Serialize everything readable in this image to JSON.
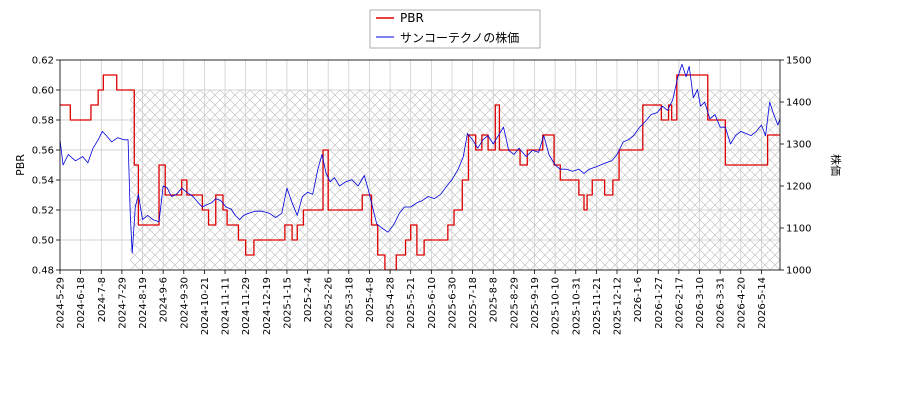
{
  "chart_data": {
    "type": "line",
    "ylabel_left": "PBR",
    "ylabel_right": "株価",
    "ylim_left": [
      0.48,
      0.62
    ],
    "ylim_right": [
      1000,
      1500
    ],
    "yticks_left": [
      "0.48",
      "0.50",
      "0.52",
      "0.54",
      "0.56",
      "0.58",
      "0.60",
      "0.62"
    ],
    "yticks_right": [
      "1000",
      "1100",
      "1200",
      "1300",
      "1400",
      "1500"
    ],
    "grid": true,
    "legend_position": "top-center",
    "x_tick_labels": [
      "2024-5-29",
      "2024-6-18",
      "2024-7-8",
      "2024-7-29",
      "2024-8-19",
      "2024-9-6",
      "2024-9-30",
      "2024-10-21",
      "2024-11-11",
      "2024-11-29",
      "2024-12-19",
      "2025-1-15",
      "2025-2-4",
      "2025-2-26",
      "2025-3-18",
      "2025-4-8",
      "2025-4-28",
      "2025-5-21",
      "2025-6-10",
      "2025-6-30",
      "2025-7-18",
      "2025-8-8",
      "2025-8-29",
      "2025-9-19",
      "2025-10-10",
      "2025-10-31",
      "2025-11-21",
      "2025-12-12",
      "2026-1-6",
      "2026-1-27",
      "2026-2-17",
      "2026-3-10",
      "2026-3-31",
      "2026-4-20",
      "2026-5-14"
    ],
    "series": [
      {
        "name": "PBR",
        "color": "#dd0000",
        "axis": "left",
        "points": [
          [
            0,
            0.59
          ],
          [
            1,
            0.59
          ],
          [
            1,
            0.58
          ],
          [
            3,
            0.58
          ],
          [
            3,
            0.59
          ],
          [
            3.7,
            0.59
          ],
          [
            3.7,
            0.6
          ],
          [
            4.2,
            0.6
          ],
          [
            4.2,
            0.61
          ],
          [
            5.5,
            0.61
          ],
          [
            5.5,
            0.6
          ],
          [
            7.2,
            0.6
          ],
          [
            7.2,
            0.55
          ],
          [
            7.6,
            0.55
          ],
          [
            7.6,
            0.51
          ],
          [
            9.6,
            0.51
          ],
          [
            9.6,
            0.55
          ],
          [
            10.2,
            0.55
          ],
          [
            10.2,
            0.53
          ],
          [
            11.8,
            0.53
          ],
          [
            11.8,
            0.54
          ],
          [
            12.3,
            0.54
          ],
          [
            12.3,
            0.53
          ],
          [
            13.8,
            0.53
          ],
          [
            13.8,
            0.52
          ],
          [
            14.4,
            0.52
          ],
          [
            14.4,
            0.51
          ],
          [
            15.1,
            0.51
          ],
          [
            15.1,
            0.53
          ],
          [
            15.8,
            0.53
          ],
          [
            15.8,
            0.52
          ],
          [
            16.2,
            0.52
          ],
          [
            16.2,
            0.51
          ],
          [
            17.3,
            0.51
          ],
          [
            17.3,
            0.5
          ],
          [
            18.0,
            0.5
          ],
          [
            18.0,
            0.49
          ],
          [
            18.8,
            0.49
          ],
          [
            18.8,
            0.5
          ],
          [
            21.8,
            0.5
          ],
          [
            21.8,
            0.51
          ],
          [
            22.5,
            0.51
          ],
          [
            22.5,
            0.5
          ],
          [
            23.0,
            0.5
          ],
          [
            23.0,
            0.51
          ],
          [
            23.6,
            0.51
          ],
          [
            23.6,
            0.52
          ],
          [
            25.5,
            0.52
          ],
          [
            25.5,
            0.56
          ],
          [
            26.0,
            0.56
          ],
          [
            26.0,
            0.52
          ],
          [
            29.3,
            0.52
          ],
          [
            29.3,
            0.53
          ],
          [
            30.2,
            0.53
          ],
          [
            30.2,
            0.51
          ],
          [
            30.8,
            0.51
          ],
          [
            30.8,
            0.49
          ],
          [
            31.5,
            0.49
          ],
          [
            31.5,
            0.48
          ],
          [
            32.6,
            0.48
          ],
          [
            32.6,
            0.49
          ],
          [
            33.5,
            0.49
          ],
          [
            33.5,
            0.5
          ],
          [
            34.0,
            0.5
          ],
          [
            34.0,
            0.51
          ],
          [
            34.6,
            0.51
          ],
          [
            34.6,
            0.49
          ],
          [
            35.3,
            0.49
          ],
          [
            35.3,
            0.5
          ],
          [
            37.6,
            0.5
          ],
          [
            37.6,
            0.51
          ],
          [
            38.2,
            0.51
          ],
          [
            38.2,
            0.52
          ],
          [
            39.0,
            0.52
          ],
          [
            39.0,
            0.54
          ],
          [
            39.6,
            0.54
          ],
          [
            39.6,
            0.57
          ],
          [
            40.3,
            0.57
          ],
          [
            40.3,
            0.56
          ],
          [
            40.9,
            0.56
          ],
          [
            40.9,
            0.57
          ],
          [
            41.5,
            0.57
          ],
          [
            41.5,
            0.56
          ],
          [
            42.2,
            0.56
          ],
          [
            42.2,
            0.59
          ],
          [
            42.6,
            0.59
          ],
          [
            42.6,
            0.56
          ],
          [
            44.6,
            0.56
          ],
          [
            44.6,
            0.55
          ],
          [
            45.3,
            0.55
          ],
          [
            45.3,
            0.56
          ],
          [
            46.8,
            0.56
          ],
          [
            46.8,
            0.57
          ],
          [
            47.9,
            0.57
          ],
          [
            47.9,
            0.55
          ],
          [
            48.5,
            0.55
          ],
          [
            48.5,
            0.54
          ],
          [
            50.3,
            0.54
          ],
          [
            50.3,
            0.53
          ],
          [
            50.8,
            0.53
          ],
          [
            50.8,
            0.52
          ],
          [
            51.1,
            0.52
          ],
          [
            51.1,
            0.53
          ],
          [
            51.6,
            0.53
          ],
          [
            51.6,
            0.54
          ],
          [
            52.8,
            0.54
          ],
          [
            52.8,
            0.53
          ],
          [
            53.6,
            0.53
          ],
          [
            53.6,
            0.54
          ],
          [
            54.2,
            0.54
          ],
          [
            54.2,
            0.56
          ],
          [
            56.5,
            0.56
          ],
          [
            56.5,
            0.59
          ],
          [
            58.3,
            0.59
          ],
          [
            58.3,
            0.58
          ],
          [
            59.0,
            0.58
          ],
          [
            59.0,
            0.59
          ],
          [
            59.3,
            0.59
          ],
          [
            59.3,
            0.58
          ],
          [
            59.8,
            0.58
          ],
          [
            59.8,
            0.61
          ],
          [
            62.8,
            0.61
          ],
          [
            62.8,
            0.58
          ],
          [
            64.5,
            0.58
          ],
          [
            64.5,
            0.55
          ],
          [
            68.6,
            0.55
          ],
          [
            68.6,
            0.57
          ],
          [
            70.0,
            0.57
          ],
          [
            70.0,
            0.54
          ]
        ]
      },
      {
        "name": "サンコーテクノの株価",
        "color": "#0000dd",
        "axis": "right",
        "points": [
          [
            0,
            1310
          ],
          [
            0.3,
            1250
          ],
          [
            0.8,
            1275
          ],
          [
            1.5,
            1260
          ],
          [
            2.2,
            1270
          ],
          [
            2.7,
            1255
          ],
          [
            3.2,
            1290
          ],
          [
            3.7,
            1310
          ],
          [
            4.1,
            1330
          ],
          [
            4.5,
            1320
          ],
          [
            5.0,
            1305
          ],
          [
            5.6,
            1315
          ],
          [
            6.2,
            1310
          ],
          [
            6.6,
            1310
          ],
          [
            6.8,
            1140
          ],
          [
            7.0,
            1040
          ],
          [
            7.3,
            1150
          ],
          [
            7.6,
            1180
          ],
          [
            8.0,
            1120
          ],
          [
            8.5,
            1130
          ],
          [
            9.0,
            1120
          ],
          [
            9.6,
            1115
          ],
          [
            10.0,
            1200
          ],
          [
            10.4,
            1195
          ],
          [
            10.8,
            1175
          ],
          [
            11.3,
            1180
          ],
          [
            11.8,
            1195
          ],
          [
            12.3,
            1185
          ],
          [
            12.9,
            1175
          ],
          [
            13.4,
            1160
          ],
          [
            13.8,
            1150
          ],
          [
            14.2,
            1155
          ],
          [
            14.7,
            1160
          ],
          [
            15.1,
            1170
          ],
          [
            15.6,
            1165
          ],
          [
            16.1,
            1150
          ],
          [
            16.6,
            1145
          ],
          [
            17.0,
            1130
          ],
          [
            17.4,
            1120
          ],
          [
            17.8,
            1130
          ],
          [
            18.3,
            1135
          ],
          [
            18.9,
            1140
          ],
          [
            19.6,
            1140
          ],
          [
            20.3,
            1135
          ],
          [
            20.9,
            1125
          ],
          [
            21.5,
            1135
          ],
          [
            22.0,
            1195
          ],
          [
            22.5,
            1160
          ],
          [
            23.0,
            1130
          ],
          [
            23.5,
            1175
          ],
          [
            24.0,
            1185
          ],
          [
            24.5,
            1180
          ],
          [
            25.0,
            1240
          ],
          [
            25.4,
            1275
          ],
          [
            25.8,
            1230
          ],
          [
            26.2,
            1210
          ],
          [
            26.6,
            1220
          ],
          [
            27.1,
            1200
          ],
          [
            27.7,
            1210
          ],
          [
            28.3,
            1215
          ],
          [
            28.9,
            1200
          ],
          [
            29.5,
            1225
          ],
          [
            29.9,
            1190
          ],
          [
            30.3,
            1150
          ],
          [
            30.7,
            1110
          ],
          [
            31.2,
            1100
          ],
          [
            31.8,
            1090
          ],
          [
            32.4,
            1110
          ],
          [
            32.9,
            1135
          ],
          [
            33.4,
            1150
          ],
          [
            34.0,
            1150
          ],
          [
            34.6,
            1160
          ],
          [
            35.1,
            1165
          ],
          [
            35.7,
            1175
          ],
          [
            36.3,
            1170
          ],
          [
            36.9,
            1180
          ],
          [
            37.5,
            1200
          ],
          [
            38.0,
            1215
          ],
          [
            38.6,
            1240
          ],
          [
            39.1,
            1270
          ],
          [
            39.5,
            1325
          ],
          [
            40.0,
            1310
          ],
          [
            40.5,
            1290
          ],
          [
            41.0,
            1310
          ],
          [
            41.5,
            1320
          ],
          [
            42.0,
            1300
          ],
          [
            42.5,
            1320
          ],
          [
            43.0,
            1340
          ],
          [
            43.5,
            1285
          ],
          [
            44.0,
            1275
          ],
          [
            44.5,
            1290
          ],
          [
            45.2,
            1270
          ],
          [
            45.8,
            1285
          ],
          [
            46.4,
            1280
          ],
          [
            46.9,
            1320
          ],
          [
            47.4,
            1275
          ],
          [
            48.0,
            1250
          ],
          [
            48.5,
            1240
          ],
          [
            49.1,
            1240
          ],
          [
            49.7,
            1235
          ],
          [
            50.3,
            1240
          ],
          [
            50.8,
            1230
          ],
          [
            51.3,
            1240
          ],
          [
            51.9,
            1245
          ],
          [
            52.4,
            1250
          ],
          [
            52.9,
            1255
          ],
          [
            53.5,
            1260
          ],
          [
            54.0,
            1275
          ],
          [
            54.6,
            1305
          ],
          [
            55.1,
            1310
          ],
          [
            55.6,
            1320
          ],
          [
            56.2,
            1340
          ],
          [
            56.8,
            1355
          ],
          [
            57.3,
            1370
          ],
          [
            57.9,
            1375
          ],
          [
            58.4,
            1390
          ],
          [
            58.9,
            1380
          ],
          [
            59.4,
            1405
          ],
          [
            59.9,
            1460
          ],
          [
            60.3,
            1490
          ],
          [
            60.7,
            1460
          ],
          [
            61.0,
            1485
          ],
          [
            61.4,
            1410
          ],
          [
            61.8,
            1430
          ],
          [
            62.1,
            1390
          ],
          [
            62.5,
            1400
          ],
          [
            63.0,
            1360
          ],
          [
            63.5,
            1370
          ],
          [
            64.0,
            1340
          ],
          [
            64.5,
            1340
          ],
          [
            65.0,
            1300
          ],
          [
            65.5,
            1320
          ],
          [
            66.0,
            1330
          ],
          [
            66.5,
            1325
          ],
          [
            67.0,
            1320
          ],
          [
            67.5,
            1330
          ],
          [
            68.0,
            1345
          ],
          [
            68.4,
            1320
          ],
          [
            68.8,
            1400
          ],
          [
            69.2,
            1370
          ],
          [
            69.6,
            1345
          ],
          [
            70.0,
            1375
          ]
        ]
      }
    ]
  }
}
